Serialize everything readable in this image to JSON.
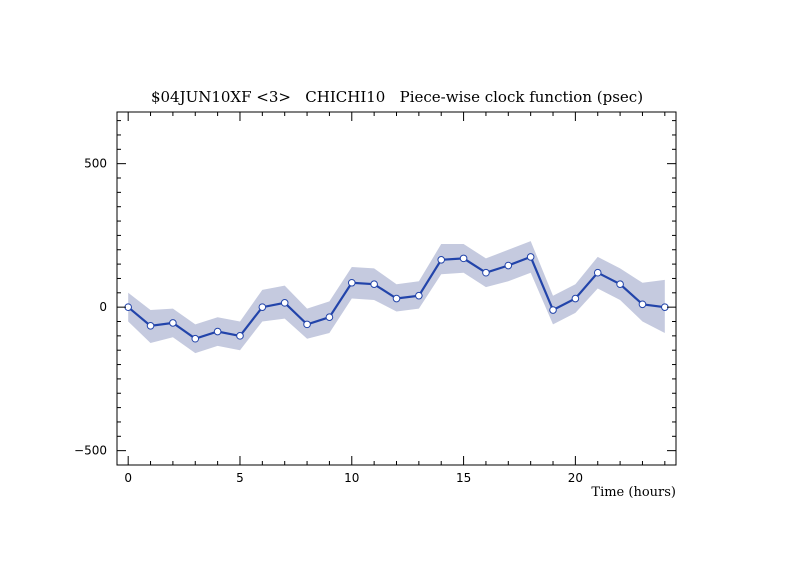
{
  "chart_data": {
    "type": "line",
    "title": "$04JUN10XF <3>   CHICHI10   Piece-wise clock function (psec)",
    "xlabel": "Time (hours)",
    "ylabel": "",
    "xlim": [
      -0.5,
      24.5
    ],
    "ylim": [
      -550,
      680
    ],
    "x_ticks": [
      0,
      5,
      10,
      15,
      20
    ],
    "y_ticks": [
      -500,
      0,
      500
    ],
    "grid": false,
    "legend": "none",
    "colors": {
      "line": "#2244aa",
      "band": "#c5cadf",
      "marker_fill": "#ffffff"
    },
    "series": [
      {
        "x": [
          0,
          1,
          2,
          3,
          4,
          5,
          6,
          7,
          8,
          9,
          10,
          11,
          12,
          13,
          14,
          15,
          16,
          17,
          18,
          19,
          20,
          21,
          22,
          23,
          24
        ],
        "values": [
          0,
          -65,
          -55,
          -110,
          -85,
          -100,
          0,
          15,
          -60,
          -35,
          85,
          80,
          30,
          40,
          165,
          170,
          120,
          145,
          175,
          -10,
          30,
          120,
          80,
          10,
          0
        ],
        "upper": [
          50,
          -10,
          -5,
          -60,
          -35,
          -50,
          60,
          75,
          -5,
          20,
          140,
          135,
          80,
          90,
          220,
          220,
          170,
          200,
          230,
          40,
          80,
          175,
          135,
          85,
          95
        ],
        "lower": [
          -50,
          -125,
          -105,
          -160,
          -135,
          -150,
          -50,
          -40,
          -110,
          -90,
          30,
          25,
          -15,
          -5,
          115,
          120,
          70,
          90,
          120,
          -60,
          -20,
          65,
          25,
          -50,
          -90
        ]
      }
    ]
  }
}
